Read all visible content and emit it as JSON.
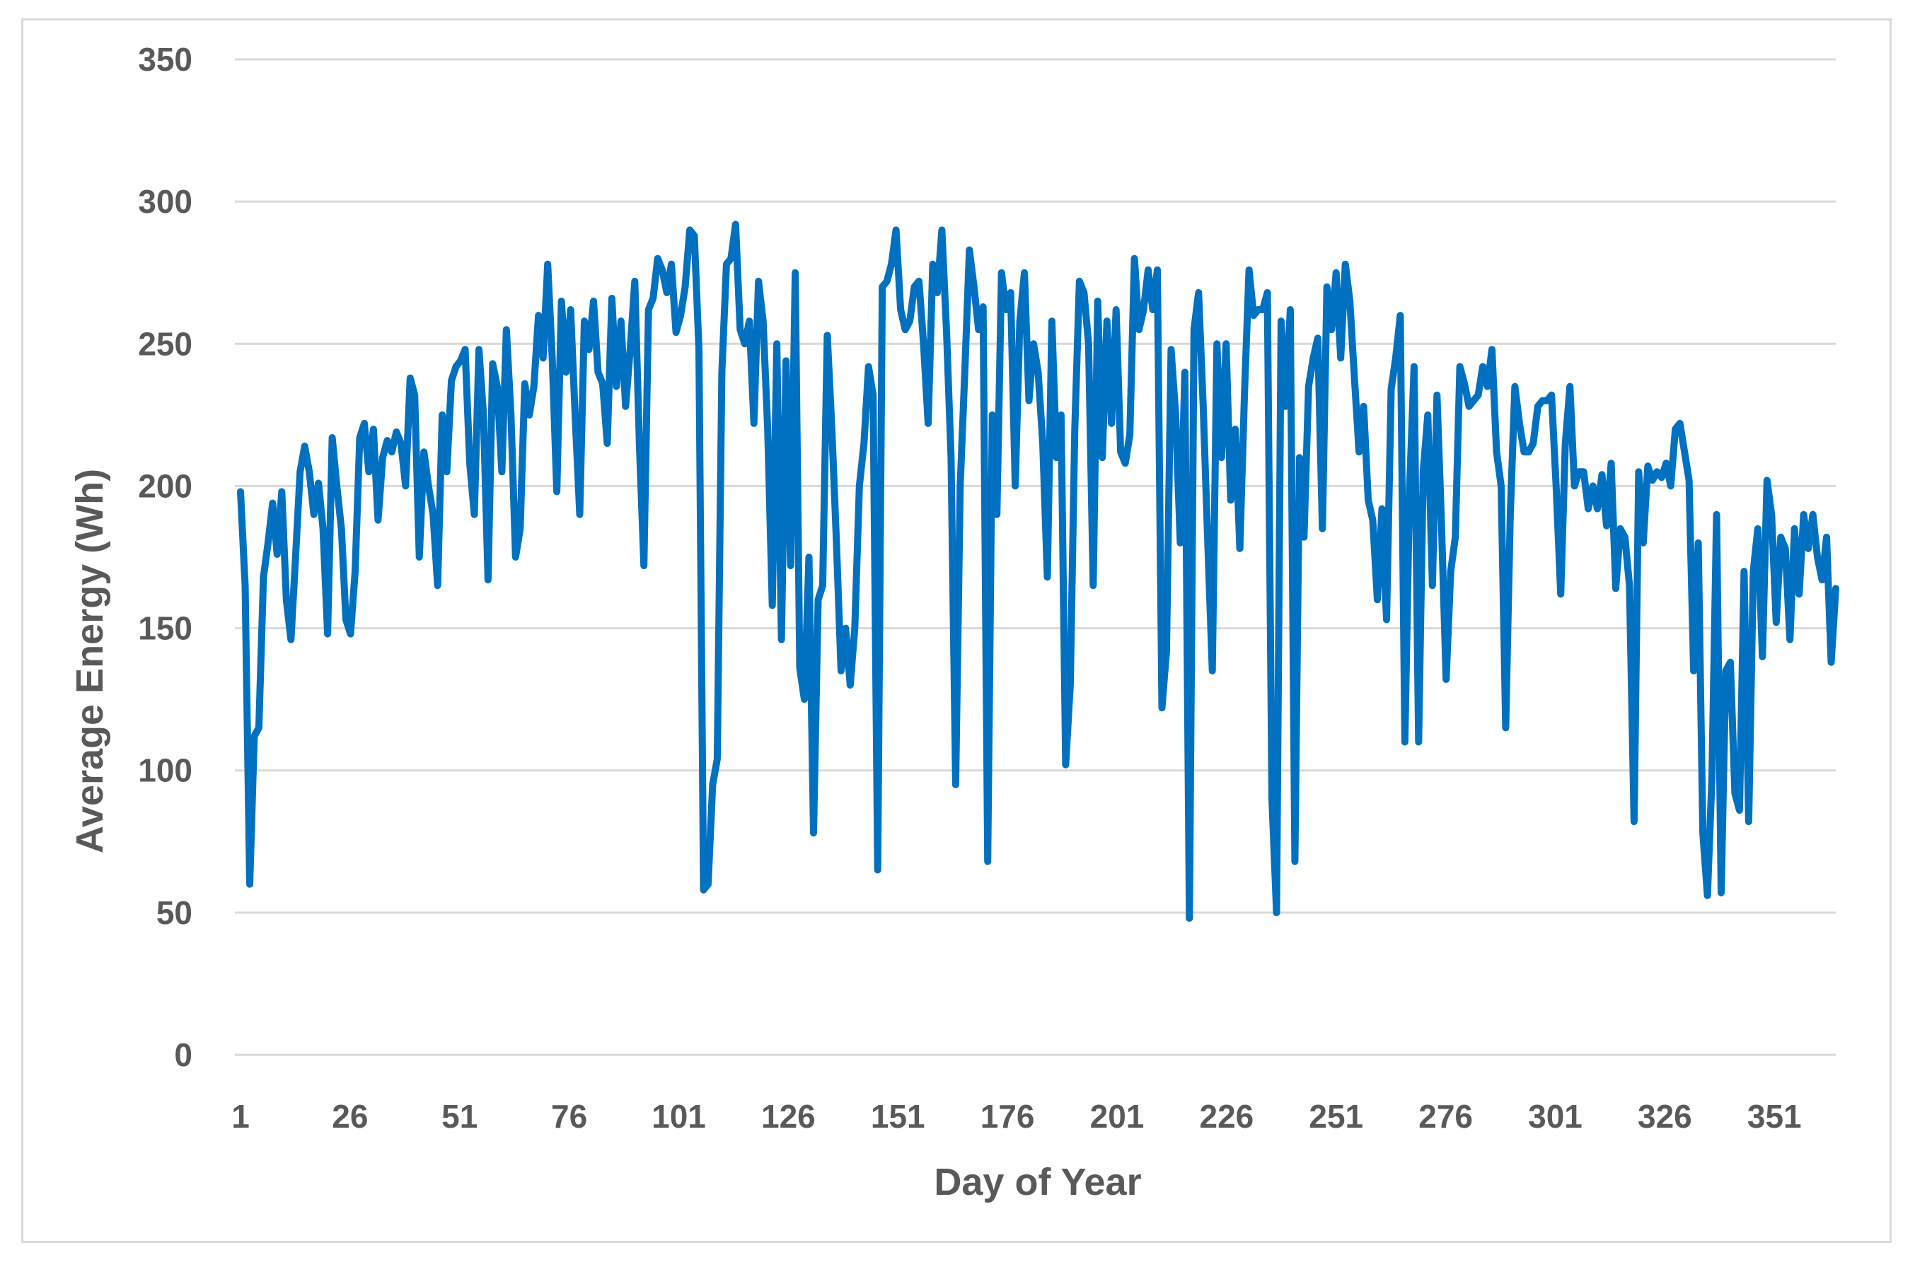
{
  "chart_data": {
    "type": "line",
    "xlabel": "Day of Year",
    "ylabel": "Average Energy (Wh)",
    "xlim": [
      1,
      365
    ],
    "ylim": [
      0,
      350
    ],
    "x_ticks": [
      1,
      26,
      51,
      76,
      101,
      126,
      151,
      176,
      201,
      226,
      251,
      276,
      301,
      326,
      351
    ],
    "y_ticks": [
      0,
      50,
      100,
      150,
      200,
      250,
      300,
      350
    ],
    "grid": "horizontal",
    "legend": "none",
    "line_color": "#0070c0",
    "series": [
      {
        "values": [
          198,
          165,
          60,
          112,
          115,
          168,
          180,
          194,
          176,
          198,
          160,
          146,
          175,
          205,
          214,
          205,
          190,
          201,
          185,
          148,
          217,
          200,
          185,
          153,
          148,
          170,
          217,
          222,
          205,
          220,
          188,
          210,
          216,
          212,
          219,
          215,
          200,
          238,
          232,
          175,
          212,
          200,
          190,
          165,
          225,
          205,
          237,
          242,
          244,
          248,
          208,
          190,
          248,
          225,
          167,
          243,
          235,
          205,
          255,
          225,
          175,
          185,
          236,
          225,
          235,
          260,
          245,
          278,
          245,
          198,
          265,
          240,
          262,
          225,
          190,
          258,
          248,
          265,
          240,
          236,
          215,
          266,
          235,
          258,
          228,
          248,
          272,
          215,
          172,
          262,
          266,
          280,
          276,
          268,
          278,
          254,
          260,
          270,
          290,
          288,
          248,
          58,
          60,
          95,
          104,
          240,
          278,
          280,
          292,
          255,
          250,
          258,
          222,
          272,
          258,
          220,
          158,
          250,
          146,
          244,
          172,
          275,
          136,
          125,
          175,
          78,
          160,
          165,
          253,
          220,
          180,
          135,
          150,
          130,
          150,
          200,
          215,
          242,
          232,
          65,
          270,
          272,
          278,
          290,
          262,
          255,
          258,
          270,
          272,
          250,
          222,
          278,
          268,
          290,
          255,
          210,
          95,
          200,
          240,
          283,
          270,
          255,
          263,
          68,
          225,
          190,
          275,
          262,
          268,
          200,
          258,
          275,
          230,
          250,
          240,
          215,
          168,
          258,
          210,
          225,
          102,
          130,
          220,
          272,
          268,
          250,
          165,
          265,
          210,
          258,
          222,
          262,
          212,
          208,
          218,
          280,
          255,
          262,
          276,
          262,
          276,
          122,
          142,
          248,
          225,
          180,
          240,
          48,
          255,
          268,
          228,
          180,
          135,
          250,
          210,
          250,
          195,
          220,
          178,
          232,
          276,
          260,
          262,
          262,
          268,
          90,
          50,
          258,
          228,
          262,
          68,
          210,
          182,
          235,
          245,
          252,
          185,
          270,
          255,
          275,
          245,
          278,
          265,
          238,
          212,
          228,
          195,
          188,
          160,
          192,
          153,
          234,
          245,
          260,
          110,
          198,
          242,
          110,
          205,
          225,
          165,
          232,
          186,
          132,
          170,
          182,
          242,
          236,
          228,
          230,
          232,
          242,
          235,
          248,
          212,
          200,
          115,
          190,
          235,
          222,
          212,
          212,
          215,
          228,
          230,
          230,
          232,
          200,
          162,
          215,
          235,
          200,
          205,
          205,
          192,
          200,
          192,
          204,
          186,
          208,
          164,
          185,
          182,
          165,
          82,
          205,
          180,
          207,
          202,
          205,
          203,
          208,
          200,
          220,
          222,
          212,
          202,
          135,
          180,
          78,
          56,
          98,
          190,
          57,
          135,
          138,
          92,
          86,
          170,
          82,
          170,
          185,
          140,
          202,
          190,
          152,
          182,
          178,
          146,
          185,
          162,
          190,
          178,
          190,
          175,
          167,
          182,
          138,
          164
        ]
      }
    ]
  }
}
